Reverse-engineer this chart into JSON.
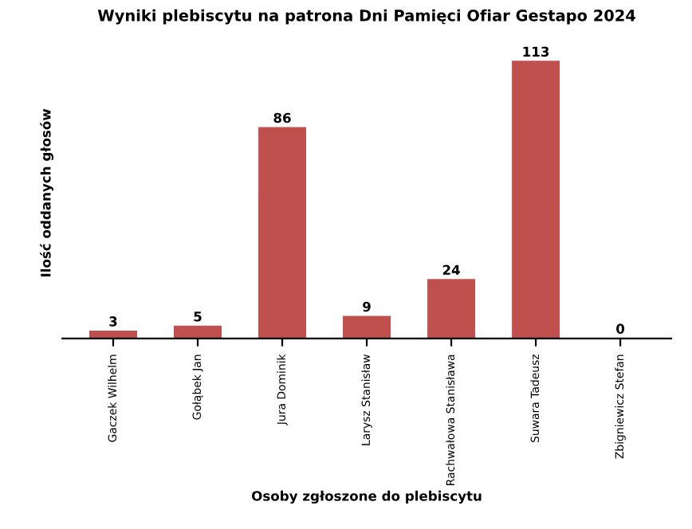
{
  "chart_data": {
    "type": "bar",
    "title": "Wyniki plebiscytu na patrona Dni Pamięci Ofiar Gestapo 2024",
    "xlabel": "Osoby zgłoszone do plebiscytu",
    "ylabel": "Ilość oddanych głosów",
    "categories": [
      "Gaczek Wilhelm",
      "Gołąbek Jan",
      "Jura Dominik",
      "Larysz Stanisław",
      "Rachwałowa Stanisława",
      "Suwara Tadeusz",
      "Zbigniewicz Stefan"
    ],
    "values": [
      3,
      5,
      86,
      9,
      24,
      113,
      0
    ],
    "color": "#c0504d",
    "data_labels": true,
    "grid": false,
    "legend": false
  }
}
